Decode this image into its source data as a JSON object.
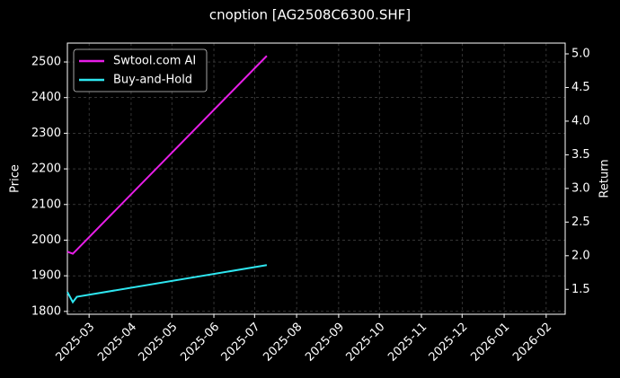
{
  "chart_data": {
    "type": "line",
    "title": "cnoption [AG2508C6300.SHF]",
    "ylabel": "Price",
    "y2label": "Return",
    "x": [
      "2025-02-13",
      "2025-02-17",
      "2025-02-20",
      "2025-07-10"
    ],
    "xlim": [
      "2025-02-13",
      "2026-02-15"
    ],
    "xticks": [
      {
        "value": "2025-03-01",
        "label": "2025-03"
      },
      {
        "value": "2025-04-01",
        "label": "2025-04"
      },
      {
        "value": "2025-05-01",
        "label": "2025-05"
      },
      {
        "value": "2025-06-01",
        "label": "2025-06"
      },
      {
        "value": "2025-07-01",
        "label": "2025-07"
      },
      {
        "value": "2025-08-01",
        "label": "2025-08"
      },
      {
        "value": "2025-09-01",
        "label": "2025-09"
      },
      {
        "value": "2025-10-01",
        "label": "2025-10"
      },
      {
        "value": "2025-11-01",
        "label": "2025-11"
      },
      {
        "value": "2025-12-01",
        "label": "2025-12"
      },
      {
        "value": "2026-01-01",
        "label": "2026-01"
      },
      {
        "value": "2026-02-01",
        "label": "2026-02"
      }
    ],
    "ylim": [
      1792,
      2553
    ],
    "yticks": [
      1800,
      1900,
      2000,
      2100,
      2200,
      2300,
      2400,
      2500
    ],
    "y2lim": [
      1.13,
      5.16
    ],
    "y2ticks": [
      1.5,
      {
        "value": 2,
        "label": "2.0"
      },
      2.5,
      {
        "value": 3,
        "label": "3.0"
      },
      3.5,
      {
        "value": 4,
        "label": "4.0"
      },
      4.5,
      {
        "value": 5,
        "label": "5.0"
      }
    ],
    "grid": true,
    "legend": "upper-left",
    "series": [
      {
        "name": "Swtool.com AI",
        "color": "#e81ee8",
        "axis": "y2",
        "values": [
          2.06,
          2.03,
          2.09,
          4.97
        ]
      },
      {
        "name": "Buy-and-Hold",
        "color": "#2ee6f0",
        "axis": "y2",
        "values": [
          1.46,
          1.31,
          1.39,
          1.86
        ]
      }
    ]
  }
}
